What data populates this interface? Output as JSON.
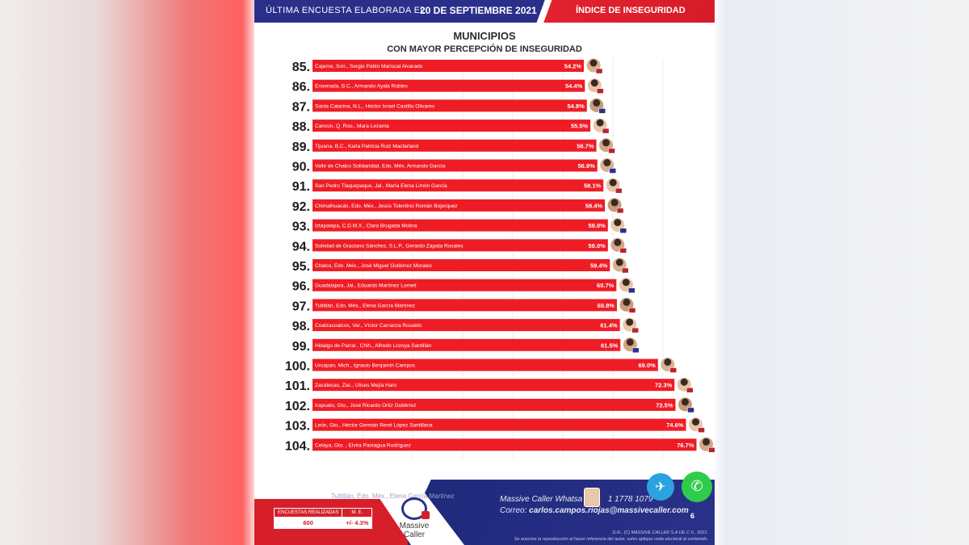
{
  "header": {
    "survey_prefix": "ÚLTIMA ENCUESTA ELABORADA EL",
    "survey_date": "20 DE SEPTIEMBRE 2021",
    "index_title": "ÍNDICE DE INSEGURIDAD"
  },
  "colors": {
    "navy": "#2a3189",
    "red": "#e2222e",
    "bar": "#ee1c25"
  },
  "chart_data": {
    "type": "bar",
    "orientation": "horizontal",
    "title": "MUNICIPIOS",
    "subtitle": "CON MAYOR PERCEPCIÓN DE INSEGURIDAD",
    "xlabel": "",
    "ylabel": "",
    "xlim": [
      0,
      100
    ],
    "grid": true,
    "categories": [
      "Cajeme, Son., Sergio Pablo Mariscal Alvarado",
      "Ensenada, B.C., Armando Ayala Robles",
      "Santa Catarina, N.L., Héctor Israel Castillo Olivares",
      "Cancún, Q. Roo., Mara Lezama",
      "Tijuana, B.C., Karla Patricia Ruiz Macfarland",
      "Valle de Chalco Solidaridad, Edo. Méx. Armando García",
      "San Pedro Tlaquepaque, Jal., María Elena Limón García",
      "Chimalhuacán, Edo. Méx., Jesús Tolentino Román Bojorquez",
      "Iztapalapa, C.D.M.X., Clara Brugada Molina",
      "Soledad de Graciano Sánchez, S.L.P., Gerardo Zapata Rosales",
      "Chalco, Edo. Méx., José Miguel Gutiérrez Morales",
      "Guadalajara, Jal., Eduardo Martínez Lomelí",
      "Tultitlán, Edo. Méx., Elena García Martínez",
      "Coatzacoalcos, Ver., Víctor Carranza Rosaldo",
      "Hidalgo de Parral , Chih., Alfredo Lozoya Santillán",
      "Uruapan, Mich., Ignacio Benjamín Campos",
      "Zacatecas, Zac., Ulises Mejía Haro",
      "Irapuato, Gto., José Ricardo Ortiz Gutiérrez",
      "León, Gto., Héctor Germán René López Santillana",
      "Celaya, Gto. , Elvira Paniagua Rodríguez"
    ],
    "ranks": [
      "85.",
      "86.",
      "87.",
      "88.",
      "89.",
      "90.",
      "91.",
      "92.",
      "93.",
      "94.",
      "95.",
      "96.",
      "97.",
      "98.",
      "99.",
      "100.",
      "101.",
      "102.",
      "103.",
      "104."
    ],
    "values": [
      54.2,
      54.4,
      54.8,
      55.5,
      56.7,
      56.9,
      58.1,
      58.4,
      59.0,
      59.0,
      59.4,
      60.7,
      60.8,
      61.4,
      61.5,
      69.0,
      72.3,
      72.5,
      74.6,
      76.7
    ],
    "value_labels": [
      "54.2%",
      "54.4%",
      "54.8%",
      "55.5%",
      "56.7%",
      "56.9%",
      "58.1%",
      "58.4%",
      "59.0%",
      "59.0%",
      "59.4%",
      "60.7%",
      "60.8%",
      "61.4%",
      "61.5%",
      "69.0%",
      "72.3%",
      "72.5%",
      "74.6%",
      "76.7%"
    ]
  },
  "footer": {
    "ghost_text": "Tultitlán, Edo. Méx., Elena García Martínez",
    "stats_headers": [
      "ENCUESTAS REALIZADAS",
      "M. E."
    ],
    "stats_values": [
      "600",
      "+/- 4.3%"
    ],
    "brand_line1": "Massive",
    "brand_line2": "Caller",
    "whatsapp_label": "Massive Caller Whatsa",
    "whatsapp_number": "1 1778 1079",
    "mail_label": "Correo:",
    "mail_address": "carlos.campos.riojas@massivecaller.com",
    "page_number": "6",
    "legal_line1": "D.R., (C) MASSIVE CALLER S.A DE C.V., 2021.",
    "legal_line2": "Se autoriza la reproducción al hacer referencia del autor, salvo aplique veda electoral al contenido."
  }
}
